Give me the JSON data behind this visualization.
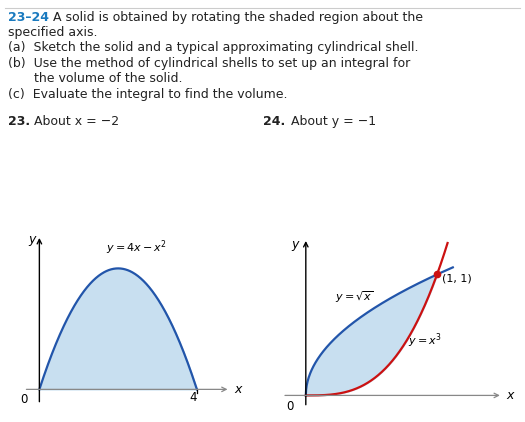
{
  "title_number": "23–24",
  "title_rest": "  A solid is obtained by rotating the shaded region about the",
  "line2": "specified axis.",
  "line_a": "(a)  Sketch the solid and a typical approximating cylindrical shell.",
  "line_b1": "(b)  Use the method of cylindrical shells to set up an integral for",
  "line_b2": "       the volume of the solid.",
  "line_c": "(c)  Evaluate the integral to find the volume.",
  "p23_bold": "23.",
  "p23_rest": "  About x = −2",
  "p24_bold": "24.",
  "p24_rest": "  About y = −1",
  "curve1_label": "$y = 4x - x^2$",
  "curve2a_label": "$y = \\sqrt{x}$",
  "curve2b_label": "$y = x^3$",
  "point_label": "(1, 1)",
  "shade_color": "#c8dff0",
  "curve_color": "#2255aa",
  "curve2a_color": "#2255aa",
  "curve2b_color": "#cc1111",
  "dot_color": "#cc1111",
  "header_number_color": "#1a7abf",
  "text_color": "#222222",
  "axis_color": "#888888",
  "background_color": "#ffffff",
  "fontsize_text": 9.0,
  "fontsize_axis_label": 8.5
}
